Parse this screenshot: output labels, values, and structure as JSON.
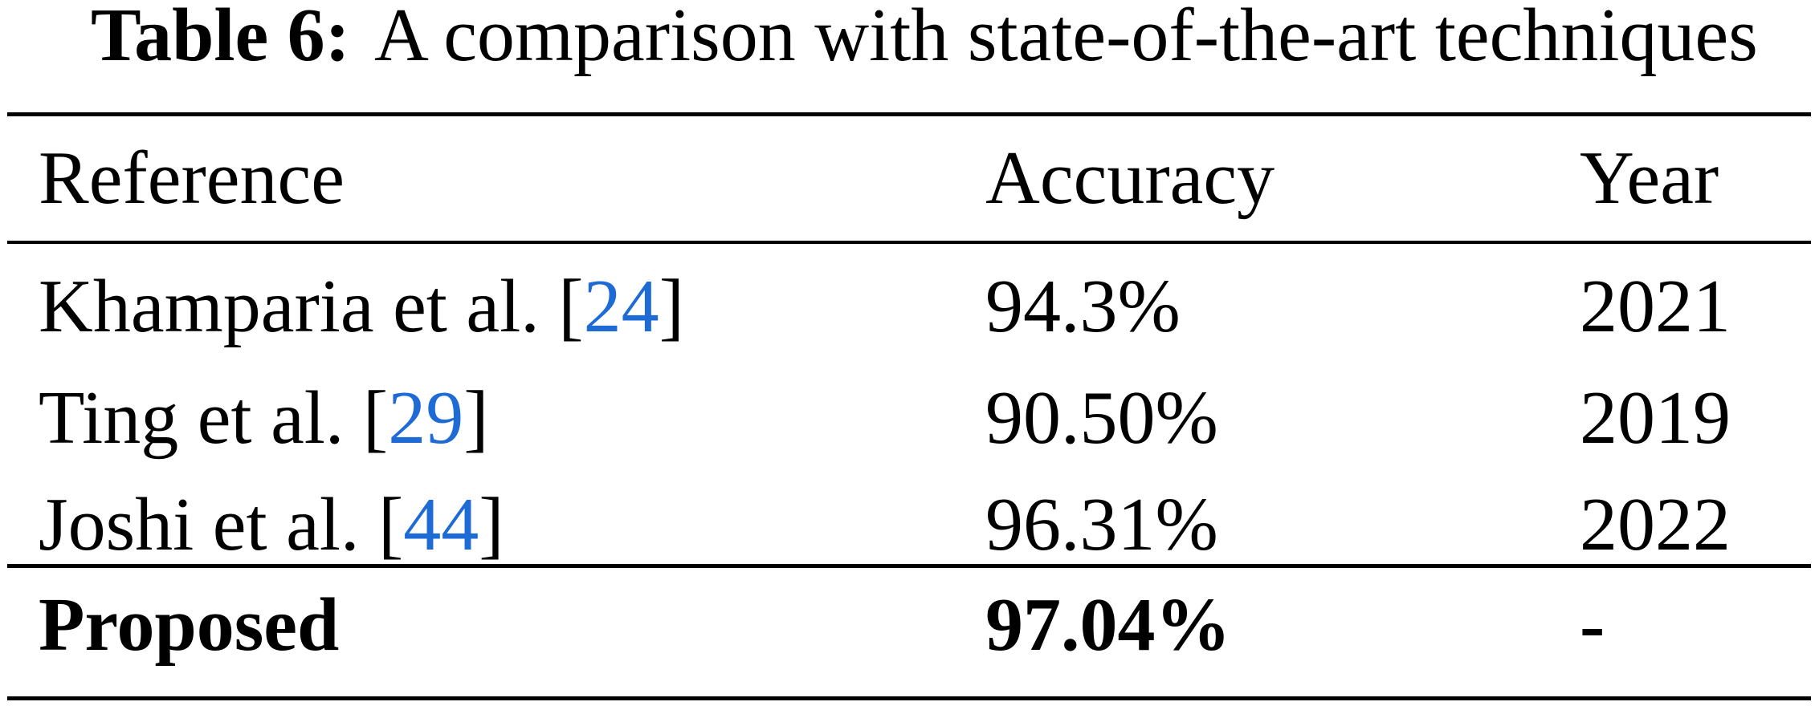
{
  "caption": {
    "label": "Table 6:",
    "text": "A comparison with state-of-the-art techniques"
  },
  "table": {
    "headers": {
      "reference": "Reference",
      "accuracy": "Accuracy",
      "year": "Year"
    },
    "rows": [
      {
        "name": "Khamparia et al. ",
        "bracket_open": "[",
        "citation": "24",
        "bracket_close": "]",
        "accuracy": "94.3%",
        "year": "2021"
      },
      {
        "name": "Ting et al. ",
        "bracket_open": "[",
        "citation": "29",
        "bracket_close": "]",
        "accuracy": "90.50%",
        "year": "2019"
      },
      {
        "name": "Joshi et al. ",
        "bracket_open": "[",
        "citation": "44",
        "bracket_close": "]",
        "accuracy": "96.31%",
        "year": "2022"
      }
    ],
    "footer": {
      "name": "Proposed",
      "accuracy": "97.04%",
      "year": "-"
    }
  },
  "colors": {
    "citation_link": "#1e6bd6",
    "text": "#000000",
    "rule": "#000000",
    "background": "#ffffff"
  }
}
